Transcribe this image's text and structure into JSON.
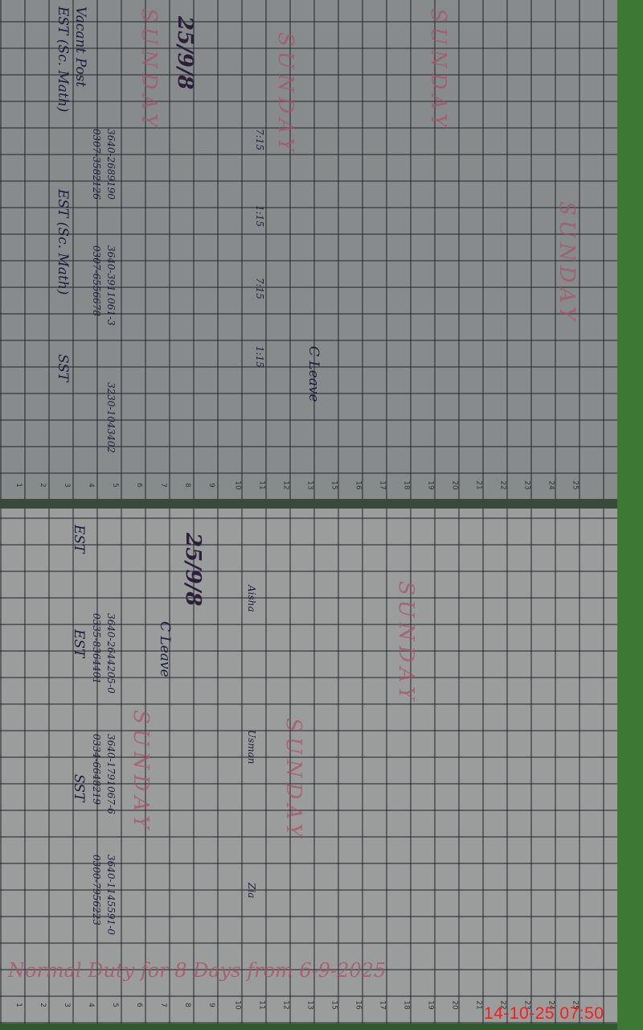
{
  "timestamp": "14-10-25 07:50",
  "left_page": {
    "date": "25/9/8",
    "headers": [
      "Vacant Post",
      "EST (Sc. Math)",
      "EST (Sc. Math)",
      "SST"
    ],
    "phone_numbers": [
      "3640-2689190",
      "0307-3582126",
      "3640-3911061-3",
      "0307-6556678",
      "3230-1043402"
    ],
    "sunday_labels": [
      "SUNDAY",
      "SUNDAY",
      "SUNDAY",
      "SUNDAY"
    ],
    "leave_label": "C Leave",
    "times": [
      "7:15",
      "1:15",
      "7:15",
      "1:15"
    ],
    "row_numbers": [
      "1",
      "2",
      "3",
      "4",
      "5",
      "6",
      "7",
      "8",
      "9",
      "10",
      "11",
      "12",
      "13",
      "15",
      "16",
      "17",
      "18",
      "19",
      "20",
      "21",
      "22",
      "23",
      "24",
      "25"
    ]
  },
  "right_page": {
    "date": "25/9/8",
    "headers": [
      "EST",
      "EST",
      "SST"
    ],
    "phone_numbers": [
      "3640-2644205-0",
      "0335-8364401",
      "3640-1791067-6",
      "0334-6648219",
      "3640-1145591-0",
      "0300-7956223"
    ],
    "sunday_labels": [
      "SUNDAY",
      "SUNDAY",
      "SUNDAY"
    ],
    "leave_label": "C Leave",
    "note": "Normal Duty for 8 Days from 6-9-2025",
    "names": [
      "Aisha",
      "Usman",
      "Zia"
    ],
    "row_numbers": [
      "1",
      "2",
      "3",
      "4",
      "5",
      "6",
      "7",
      "8",
      "9",
      "10",
      "11",
      "12",
      "13",
      "15",
      "16",
      "17",
      "18",
      "19",
      "20",
      "21",
      "22",
      "23",
      "24",
      "25"
    ]
  }
}
